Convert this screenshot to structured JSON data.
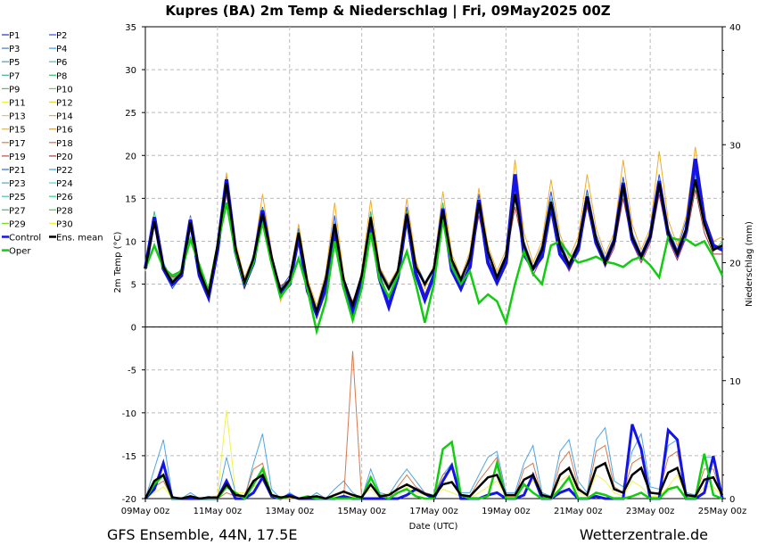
{
  "chart_data": {
    "type": "line",
    "title": "Kupres  (BA)  2m Temp & Niederschlag | Fri, 09May2025 00Z",
    "ylabel": "2m Temp (°C)",
    "y2label": "Niederschlag (mm)",
    "xlabel": "Date (UTC)",
    "ylim": [
      -20,
      35
    ],
    "y2lim": [
      0,
      40
    ],
    "x_ticks": [
      "09May 00z",
      "11May 00z",
      "13May 00z",
      "15May 00z",
      "17May 00z",
      "19May 00z",
      "21May 00z",
      "23May 00z",
      "25May 00z"
    ],
    "y_ticks": [
      35,
      30,
      25,
      20,
      15,
      10,
      5,
      0,
      -5,
      -10,
      -15,
      -20
    ],
    "y2_ticks": [
      40,
      30,
      20,
      10,
      0
    ],
    "grid": true,
    "legend": [
      {
        "name": "P1",
        "color": "#1f2fd6"
      },
      {
        "name": "P2",
        "color": "#2a52e8"
      },
      {
        "name": "P3",
        "color": "#3a7fd0"
      },
      {
        "name": "P4",
        "color": "#3c9be0"
      },
      {
        "name": "P5",
        "color": "#2aa7c9"
      },
      {
        "name": "P6",
        "color": "#35c6c0"
      },
      {
        "name": "P7",
        "color": "#3bb39a"
      },
      {
        "name": "P8",
        "color": "#36c277"
      },
      {
        "name": "P9",
        "color": "#3bd04a"
      },
      {
        "name": "P10",
        "color": "#64d92e"
      },
      {
        "name": "P11",
        "color": "#f0f040"
      },
      {
        "name": "P12",
        "color": "#e8d230"
      },
      {
        "name": "P13",
        "color": "#f2c640"
      },
      {
        "name": "P14",
        "color": "#eeae2a"
      },
      {
        "name": "P15",
        "color": "#e6b060"
      },
      {
        "name": "P16",
        "color": "#d99a3a"
      },
      {
        "name": "P17",
        "color": "#d9822e"
      },
      {
        "name": "P18",
        "color": "#cf6a3c"
      },
      {
        "name": "P19",
        "color": "#c04a48"
      },
      {
        "name": "P20",
        "color": "#a83a44"
      },
      {
        "name": "P21",
        "color": "#2c6fd8"
      },
      {
        "name": "P22",
        "color": "#2fa3e8"
      },
      {
        "name": "P23",
        "color": "#36b2cc"
      },
      {
        "name": "P24",
        "color": "#3fd8d8"
      },
      {
        "name": "P25",
        "color": "#43c8b0"
      },
      {
        "name": "P26",
        "color": "#33d08f"
      },
      {
        "name": "P27",
        "color": "#2fcc5e"
      },
      {
        "name": "P28",
        "color": "#48d648"
      },
      {
        "name": "P29",
        "color": "#78dc2c"
      },
      {
        "name": "P30",
        "color": "#f2f230"
      },
      {
        "name": "Control",
        "color": "#1414e6"
      },
      {
        "name": "Ens. mean",
        "color": "#000000"
      },
      {
        "name": "Oper",
        "color": "#11cc11"
      }
    ],
    "temperature": {
      "x_days": [
        0,
        0.25,
        0.5,
        0.75,
        1,
        1.25,
        1.5,
        1.75,
        2,
        2.25,
        2.5,
        2.75,
        3,
        3.25,
        3.5,
        3.75,
        4,
        4.25,
        4.5,
        4.75,
        5,
        5.25,
        5.5,
        5.75,
        6,
        6.25,
        6.5,
        6.75,
        7,
        7.25,
        7.5,
        7.75,
        8,
        8.25,
        8.5,
        8.75,
        9,
        9.25,
        9.5,
        9.75,
        10,
        10.25,
        10.5,
        10.75,
        11,
        11.25,
        11.5,
        11.75,
        12,
        12.25,
        12.5,
        12.75,
        13,
        13.25,
        13.5,
        13.75,
        14,
        14.25,
        14.5,
        14.75,
        15,
        15.25,
        15.5,
        15.75,
        16
      ],
      "ens_mean": [
        6.8,
        12.3,
        7.0,
        5.2,
        6.3,
        12.2,
        6.5,
        3.8,
        9.5,
        16.8,
        9.2,
        5.2,
        8.0,
        13.2,
        8.2,
        4.2,
        5.5,
        11.0,
        5.0,
        1.8,
        5.5,
        12.0,
        5.5,
        2.5,
        6.0,
        12.8,
        6.5,
        4.5,
        6.5,
        13.2,
        7.0,
        5.0,
        6.8,
        13.6,
        7.8,
        5.5,
        8.0,
        14.5,
        8.8,
        5.8,
        8.2,
        15.5,
        9.5,
        6.8,
        9.0,
        14.6,
        9.5,
        7.2,
        9.5,
        15.2,
        10.2,
        7.5,
        10.0,
        16.6,
        10.5,
        8.2,
        10.5,
        16.8,
        11.0,
        8.5,
        11.5,
        17.2,
        12.0,
        9.0,
        9.5
      ],
      "control": [
        6.8,
        12.8,
        6.8,
        5.0,
        6.0,
        12.5,
        6.0,
        3.5,
        9.0,
        17.2,
        8.8,
        5.0,
        7.5,
        13.6,
        7.8,
        3.8,
        5.0,
        10.6,
        4.2,
        1.5,
        4.5,
        11.2,
        4.8,
        1.6,
        5.0,
        12.2,
        5.6,
        2.4,
        5.8,
        13.0,
        6.2,
        3.2,
        6.0,
        13.8,
        6.6,
        4.5,
        7.0,
        14.8,
        7.5,
        5.2,
        7.5,
        17.8,
        8.5,
        6.8,
        8.2,
        14.2,
        8.5,
        7.0,
        9.0,
        15.2,
        9.8,
        7.5,
        10.0,
        16.8,
        10.2,
        8.2,
        10.5,
        17.0,
        10.8,
        8.5,
        11.2,
        19.6,
        12.5,
        9.5,
        9.0
      ],
      "oper": [
        6.8,
        9.5,
        6.9,
        6.0,
        6.5,
        10.2,
        7.2,
        4.2,
        9.5,
        14.5,
        8.6,
        5.0,
        7.5,
        12.2,
        7.4,
        3.5,
        5.0,
        8.0,
        4.3,
        -0.5,
        3.0,
        10.0,
        4.5,
        0.8,
        4.5,
        11.0,
        5.5,
        3.5,
        6.0,
        8.8,
        5.0,
        0.5,
        5.0,
        12.5,
        7.0,
        5.0,
        6.5,
        2.8,
        3.8,
        3.0,
        0.5,
        5.0,
        8.8,
        6.2,
        5.0,
        9.5,
        10.0,
        8.5,
        7.5,
        7.8,
        8.2,
        7.6,
        7.4,
        7.0,
        7.8,
        8.2,
        7.2,
        5.8,
        10.5,
        10.2,
        10.2,
        9.5,
        10.0,
        8.2,
        6.0
      ],
      "members": [
        [
          6.8,
          12.0,
          6.5,
          4.5,
          6.0,
          13.0,
          6.8,
          3.2,
          9.0,
          17.5,
          9.5,
          4.8,
          8.5,
          14.0,
          8.5,
          4.5,
          6.0,
          11.5,
          5.2,
          2.0,
          6.0,
          13.0,
          5.8,
          2.8,
          6.2,
          12.0,
          6.8,
          4.8,
          6.8,
          14.0,
          7.5,
          5.2,
          7.0,
          13.0,
          7.5,
          5.0,
          8.5,
          15.5,
          9.0,
          6.0,
          8.5,
          14.8,
          10.0,
          7.0,
          9.5,
          15.8,
          10.0,
          7.5,
          9.8,
          16.0,
          10.8,
          8.0,
          10.5,
          17.5,
          11.0,
          8.5,
          11.0,
          17.8,
          11.5,
          9.0,
          12.5,
          18.0,
          12.5,
          9.5,
          9.0
        ],
        [
          7.0,
          13.5,
          7.5,
          5.5,
          6.8,
          11.5,
          6.2,
          4.0,
          9.8,
          16.0,
          9.0,
          5.5,
          7.8,
          12.5,
          8.0,
          4.0,
          5.2,
          10.5,
          4.5,
          1.5,
          5.0,
          11.5,
          5.2,
          2.2,
          5.8,
          13.5,
          6.2,
          4.2,
          6.2,
          12.5,
          6.8,
          4.8,
          6.5,
          14.5,
          8.0,
          5.8,
          7.5,
          13.8,
          8.5,
          5.5,
          8.0,
          16.5,
          9.2,
          6.5,
          8.8,
          14.0,
          9.2,
          7.0,
          9.2,
          14.5,
          9.8,
          7.2,
          9.8,
          15.5,
          10.2,
          8.0,
          10.2,
          16.0,
          10.8,
          8.2,
          11.0,
          16.5,
          11.8,
          8.8,
          10.0
        ],
        [
          6.5,
          11.8,
          6.8,
          5.0,
          6.5,
          12.8,
          6.8,
          3.8,
          9.2,
          18.0,
          9.8,
          5.8,
          8.2,
          15.5,
          8.8,
          3.0,
          5.8,
          12.0,
          5.5,
          2.5,
          6.2,
          14.5,
          6.0,
          2.0,
          6.5,
          14.8,
          7.0,
          5.0,
          6.8,
          15.0,
          7.8,
          4.5,
          7.2,
          15.8,
          8.5,
          5.8,
          8.8,
          16.2,
          9.5,
          6.5,
          9.0,
          19.5,
          11.0,
          7.5,
          10.0,
          17.2,
          10.8,
          8.0,
          10.5,
          17.8,
          11.5,
          8.5,
          11.0,
          19.5,
          12.0,
          9.0,
          11.5,
          20.5,
          12.5,
          9.5,
          13.0,
          21.0,
          13.0,
          10.0,
          10.5
        ],
        [
          7.0,
          12.5,
          7.2,
          5.8,
          6.2,
          11.8,
          6.0,
          4.5,
          9.8,
          15.5,
          8.8,
          4.5,
          7.2,
          12.0,
          7.5,
          4.8,
          5.5,
          10.2,
          4.8,
          1.0,
          5.0,
          11.0,
          5.0,
          3.0,
          5.5,
          11.5,
          6.0,
          3.5,
          6.0,
          12.0,
          6.5,
          3.8,
          6.2,
          12.5,
          7.2,
          4.5,
          7.2,
          13.0,
          8.0,
          5.2,
          7.8,
          14.0,
          9.0,
          6.0,
          8.2,
          13.5,
          8.8,
          6.5,
          8.8,
          14.0,
          9.5,
          7.0,
          9.2,
          15.0,
          9.8,
          7.5,
          9.8,
          15.5,
          10.2,
          7.8,
          10.5,
          16.0,
          11.0,
          8.5,
          8.5
        ],
        [
          6.8,
          12.8,
          7.0,
          5.2,
          6.8,
          12.5,
          6.5,
          3.5,
          9.5,
          17.0,
          9.2,
          5.0,
          8.0,
          13.8,
          8.2,
          4.2,
          5.5,
          11.2,
          5.0,
          1.8,
          5.5,
          12.2,
          5.5,
          2.5,
          6.0,
          13.0,
          6.5,
          4.5,
          6.5,
          13.5,
          7.0,
          5.0,
          6.8,
          14.0,
          7.8,
          5.5,
          8.0,
          14.8,
          8.8,
          5.8,
          8.2,
          16.0,
          9.5,
          6.8,
          9.0,
          15.0,
          9.5,
          7.2,
          9.5,
          15.5,
          10.2,
          7.5,
          10.0,
          17.0,
          10.5,
          8.2,
          10.5,
          17.2,
          11.0,
          8.5,
          11.5,
          17.5,
          12.0,
          9.0,
          9.5
        ]
      ]
    },
    "precipitation": {
      "x_days": [
        0,
        0.25,
        0.5,
        0.75,
        1,
        1.25,
        1.5,
        1.75,
        2,
        2.25,
        2.5,
        2.75,
        3,
        3.25,
        3.5,
        3.75,
        4,
        4.25,
        4.5,
        4.75,
        5,
        5.25,
        5.5,
        5.75,
        6,
        6.25,
        6.5,
        6.75,
        7,
        7.25,
        7.5,
        7.75,
        8,
        8.25,
        8.5,
        8.75,
        9,
        9.25,
        9.5,
        9.75,
        10,
        10.25,
        10.5,
        10.75,
        11,
        11.25,
        11.5,
        11.75,
        12,
        12.25,
        12.5,
        12.75,
        13,
        13.25,
        13.5,
        13.75,
        14,
        14.25,
        14.5,
        14.75,
        15,
        15.25,
        15.5,
        15.75,
        16
      ],
      "ens_mean": [
        0,
        1.5,
        2.0,
        0.1,
        0,
        0.2,
        0,
        0.1,
        0.1,
        1.2,
        0.3,
        0.2,
        1.5,
        2.0,
        0.3,
        0.1,
        0.2,
        0,
        0.1,
        0.2,
        0,
        0.3,
        0.6,
        0.3,
        0.1,
        1.2,
        0.2,
        0.3,
        0.8,
        1.2,
        0.8,
        0.4,
        0.2,
        1.2,
        1.4,
        0.3,
        0.2,
        1.0,
        1.8,
        2.0,
        0.3,
        0.3,
        1.6,
        2.0,
        0.3,
        0.1,
        2.0,
        2.6,
        0.8,
        0.3,
        2.6,
        3.0,
        0.8,
        0.5,
        2.0,
        2.6,
        0.5,
        0.4,
        2.2,
        2.6,
        0.3,
        0.2,
        1.6,
        1.8,
        0.3
      ],
      "control": [
        0,
        0.8,
        3.0,
        0,
        0,
        0,
        0,
        0,
        0,
        1.5,
        0,
        0,
        0.5,
        1.8,
        0.2,
        0,
        0.3,
        0,
        0,
        0,
        0,
        0,
        0.2,
        0,
        0,
        0,
        0,
        0,
        0,
        0.3,
        0.8,
        0.4,
        0,
        1.5,
        2.8,
        0,
        0,
        0,
        0.3,
        0.5,
        0,
        0,
        0.3,
        2.0,
        0,
        0,
        0.5,
        0.8,
        0,
        0,
        0.2,
        0,
        0,
        0,
        6.3,
        4.2,
        0,
        0,
        5.8,
        5.0,
        0,
        0,
        0.5,
        3.6,
        0
      ],
      "oper": [
        0,
        1.2,
        2.0,
        0,
        0,
        0.2,
        0,
        0,
        0,
        1.0,
        0.5,
        0,
        1.2,
        2.5,
        0.3,
        0,
        0.2,
        0,
        0.2,
        0,
        0,
        0,
        0,
        0,
        0,
        1.8,
        0.3,
        0,
        0.5,
        0.8,
        0.2,
        0,
        0,
        4.2,
        4.8,
        0.3,
        0,
        0,
        0.2,
        3.0,
        0,
        0,
        1.2,
        0.5,
        0,
        0,
        0.8,
        1.8,
        0,
        0,
        0.5,
        0.3,
        0,
        0,
        0.2,
        0.5,
        0,
        0,
        0.8,
        1.0,
        0,
        0,
        3.8,
        0.3,
        0
      ],
      "members": [
        [
          0,
          2.5,
          5.0,
          0.2,
          0,
          0.5,
          0,
          0.2,
          0,
          3.5,
          0.5,
          0,
          3.0,
          5.5,
          0.8,
          0,
          0.5,
          0,
          0,
          0.5,
          0,
          0.8,
          1.5,
          0.5,
          0,
          2.5,
          0.5,
          0.3,
          1.5,
          2.5,
          1.5,
          0.5,
          0.3,
          2.0,
          3.0,
          0.5,
          0.5,
          2.0,
          3.5,
          4.0,
          0.5,
          0.5,
          3.0,
          4.5,
          0.5,
          0.2,
          4.0,
          5.0,
          1.5,
          0.5,
          5.0,
          6.0,
          1.5,
          1.0,
          4.0,
          5.5,
          1.0,
          0.8,
          4.5,
          5.0,
          0.5,
          0.3,
          3.5,
          3.5,
          0.5
        ],
        [
          0,
          0.5,
          1.0,
          0,
          0,
          0,
          0,
          0,
          0.3,
          7.5,
          0.5,
          0.5,
          1.0,
          1.5,
          0.2,
          0.2,
          0,
          0,
          0.2,
          0,
          0,
          0.2,
          0.5,
          0.2,
          0.2,
          0.8,
          0,
          0.5,
          0.5,
          1.0,
          0.5,
          0.3,
          0.2,
          0.8,
          0.5,
          0.2,
          0,
          0.5,
          1.0,
          1.5,
          0.2,
          0.2,
          1.0,
          1.5,
          0.2,
          0,
          1.5,
          2.0,
          0.5,
          0.2,
          2.0,
          1.5,
          0.5,
          0.2,
          1.5,
          1.0,
          0.2,
          0.2,
          1.0,
          2.0,
          0.2,
          0.1,
          1.0,
          1.0,
          0.2
        ],
        [
          0,
          1.0,
          1.5,
          0,
          0,
          0,
          0,
          0,
          0,
          0.5,
          0.2,
          0.2,
          2.5,
          3.0,
          0.2,
          0,
          0,
          0,
          0,
          0,
          0,
          0,
          0,
          12.5,
          0,
          0,
          0,
          0,
          1.0,
          2.0,
          1.0,
          0.5,
          0.2,
          2.0,
          2.5,
          0.2,
          0.2,
          1.5,
          2.5,
          3.5,
          0.2,
          0.2,
          2.5,
          3.0,
          0.2,
          0,
          3.0,
          4.0,
          1.0,
          0.2,
          4.0,
          4.5,
          1.0,
          0.5,
          3.0,
          3.5,
          0.5,
          0.5,
          3.5,
          4.0,
          0.2,
          0.2,
          2.5,
          2.5,
          0.2
        ]
      ]
    }
  },
  "footer": {
    "left": "GFS Ensemble, 44N, 17.5E",
    "right": "Wetterzentrale.de"
  }
}
